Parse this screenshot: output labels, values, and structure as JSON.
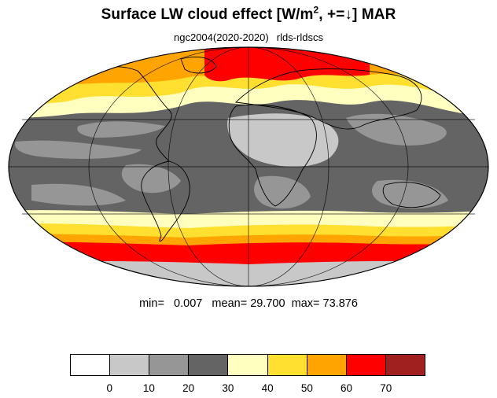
{
  "title": {
    "main_pre": "Surface LW cloud effect [W/m",
    "main_sup": "2",
    "main_post": ", +=↓]  MAR",
    "case": "ngc2004(2020-2020)",
    "variable": "rlds-rldscs"
  },
  "stats": {
    "min_label": "min=",
    "min_value": "0.007",
    "mean_label": "mean=",
    "mean_value": "29.700",
    "max_label": "max=",
    "max_value": "73.876"
  },
  "colorbar": {
    "colors": [
      "#ffffff",
      "#c8c8c8",
      "#969696",
      "#646464",
      "#ffffc0",
      "#ffe030",
      "#ffa400",
      "#ff0000",
      "#a02020"
    ],
    "tick_labels": [
      "0",
      "10",
      "20",
      "30",
      "40",
      "50",
      "60",
      "70"
    ]
  },
  "map": {
    "projection": "mollweide",
    "ocean_base_color": "#646464"
  }
}
